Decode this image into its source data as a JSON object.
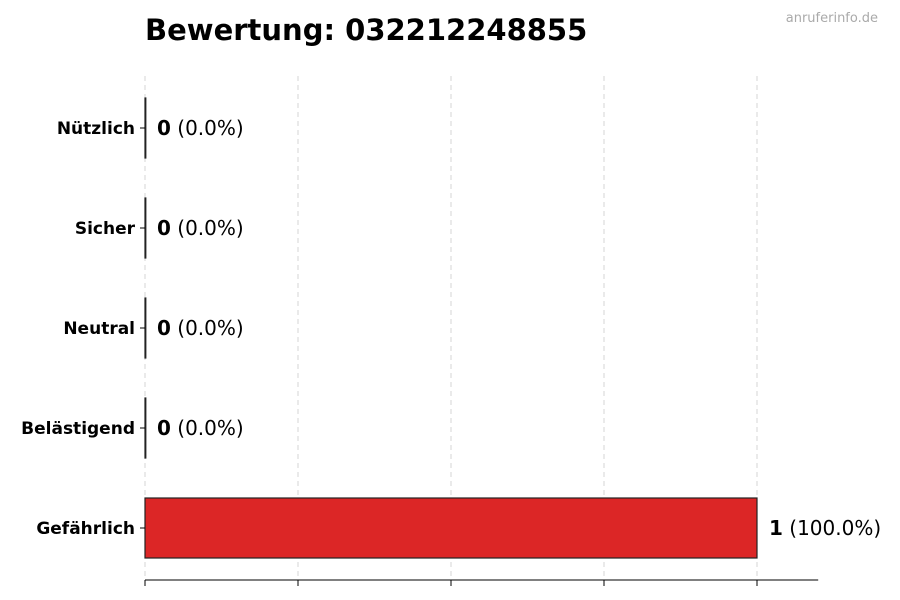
{
  "chart_data": {
    "type": "bar",
    "orientation": "horizontal",
    "title": "Bewertung: 032212248855",
    "watermark": "anruferinfo.de",
    "categories": [
      "Nützlich",
      "Sicher",
      "Neutral",
      "Belästigend",
      "Gefährlich"
    ],
    "values": [
      0,
      0,
      0,
      0,
      1
    ],
    "percent_labels": [
      "(0.0%)",
      "(0.0%)",
      "(0.0%)",
      "(0.0%)",
      "(100.0%)"
    ],
    "xlim": [
      0,
      1.1
    ],
    "xticks": [
      0,
      0.25,
      0.5,
      0.75,
      1
    ],
    "grid": "vertical dashed",
    "bar_color": "#dc2626",
    "xlabel": "",
    "ylabel": ""
  }
}
